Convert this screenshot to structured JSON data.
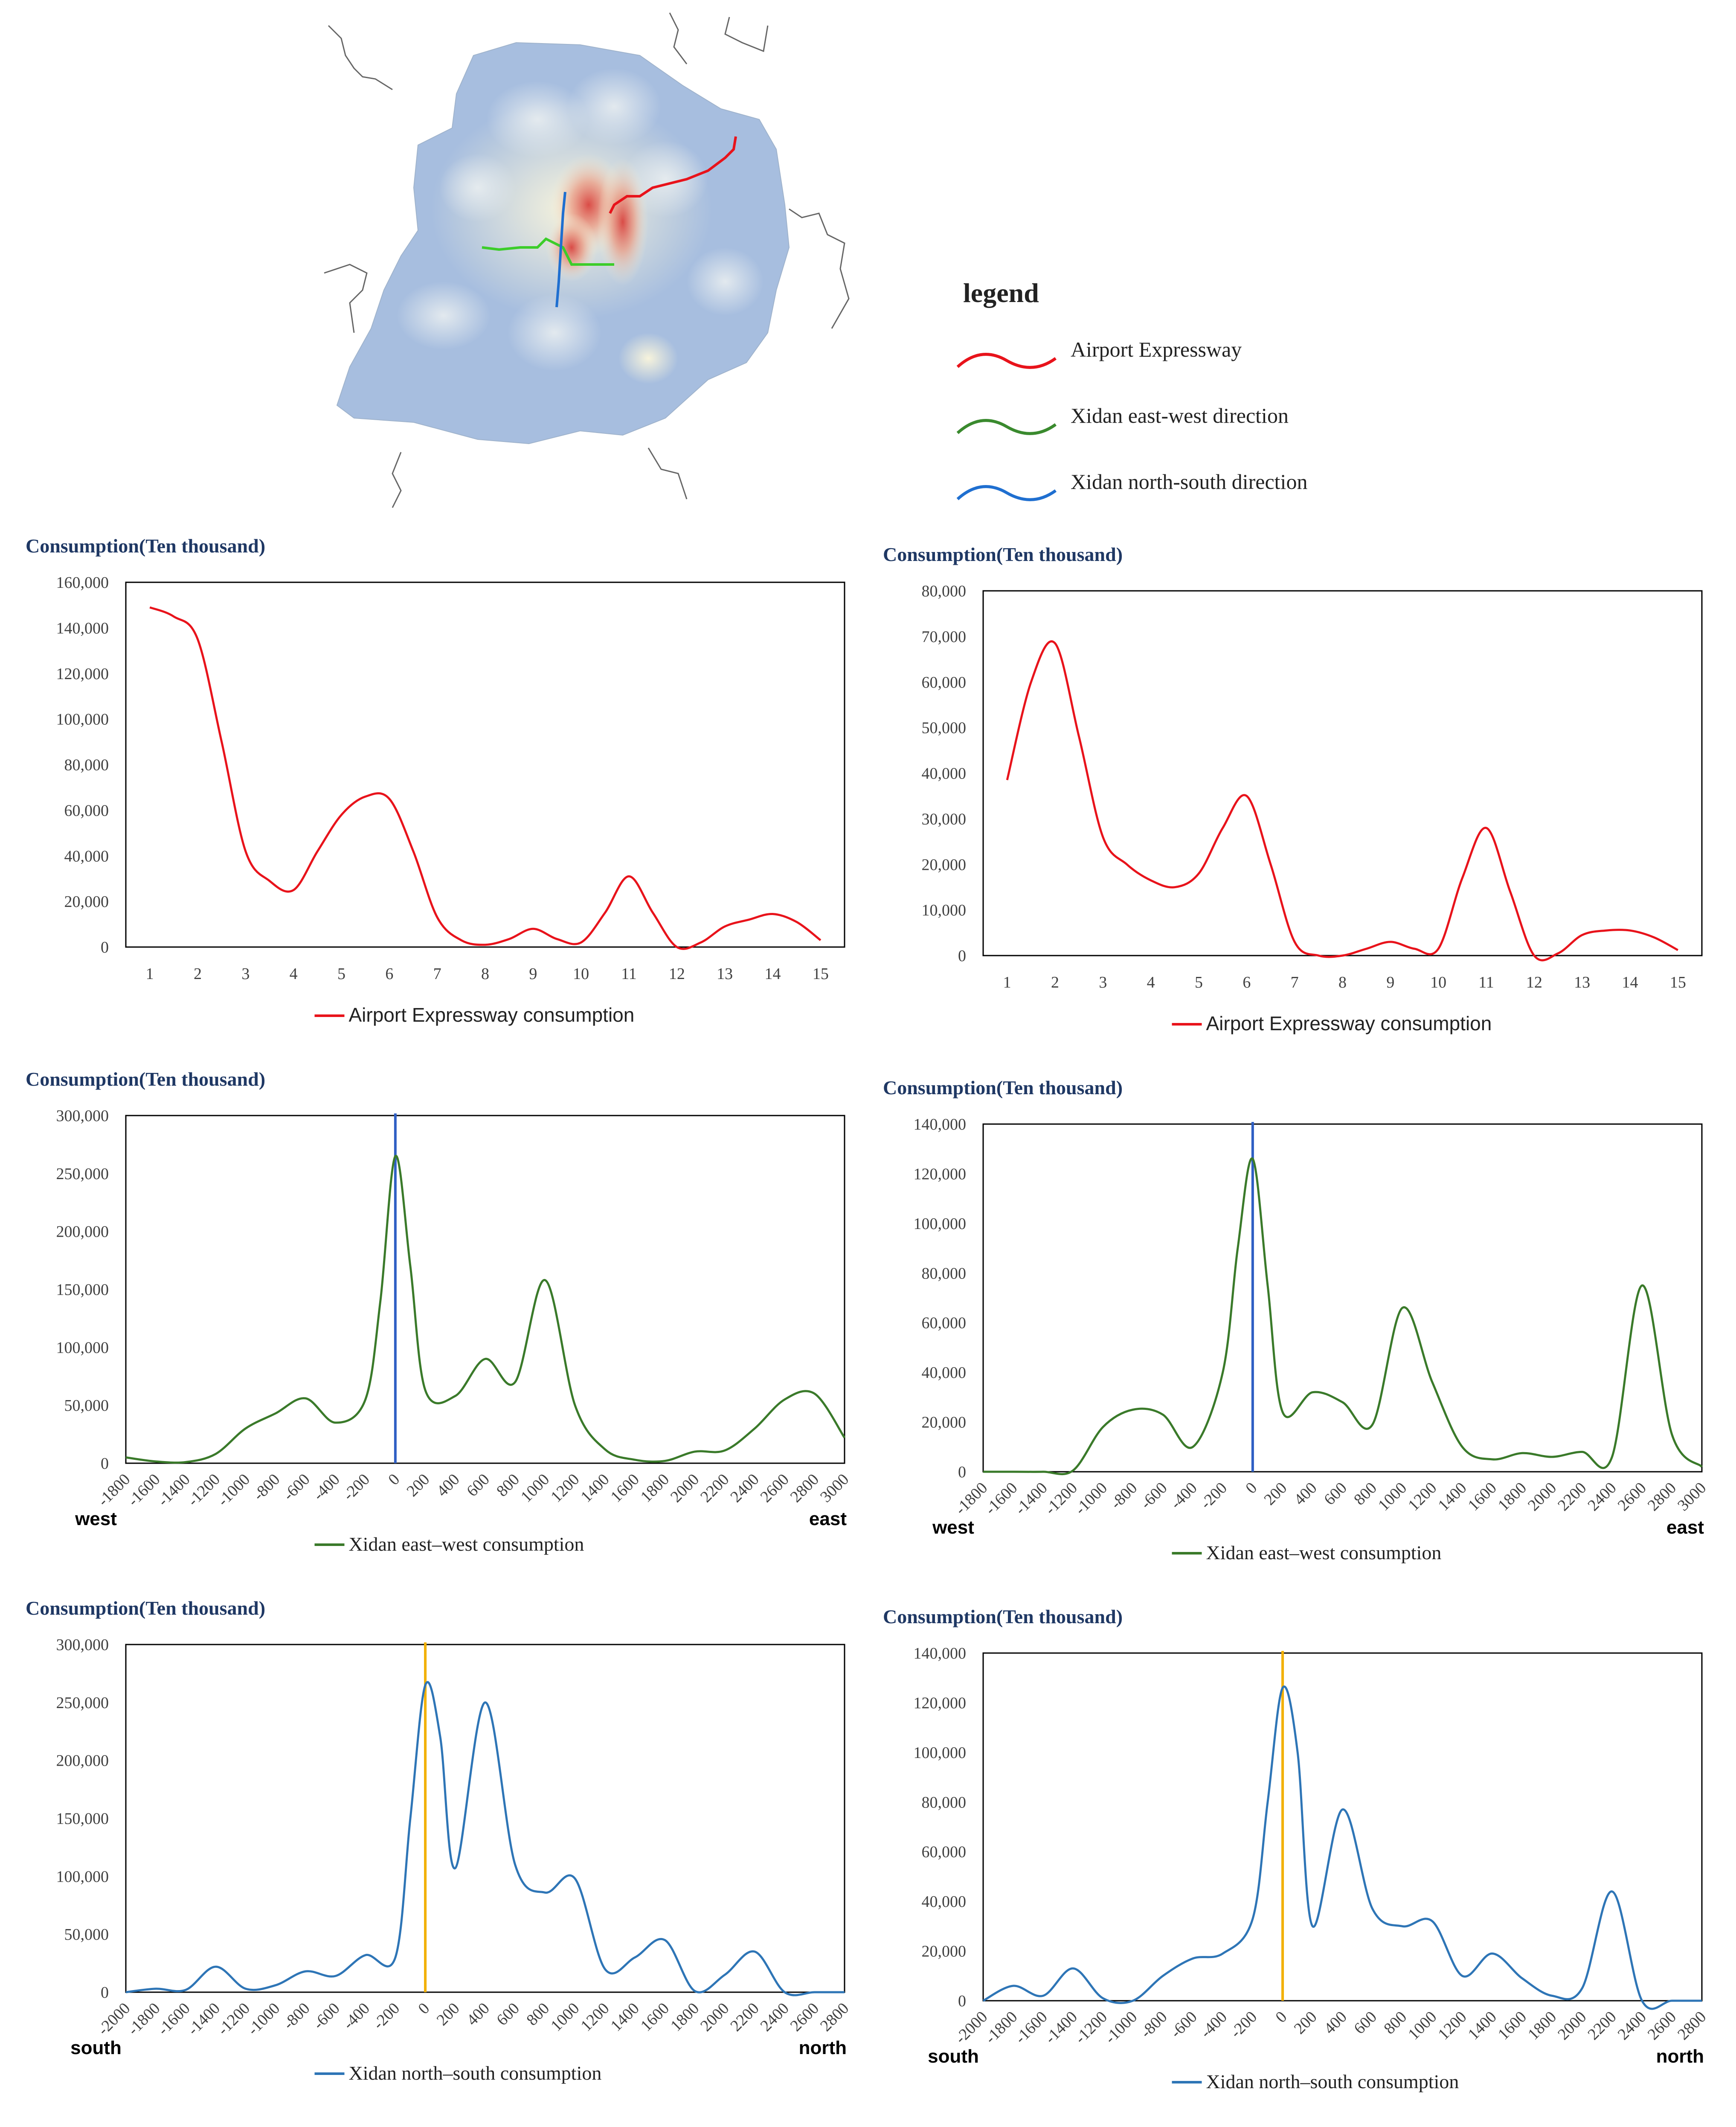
{
  "legend": {
    "title": "legend",
    "items": [
      {
        "label": "Airport Expressway",
        "color": "#e8131b"
      },
      {
        "label": "Xidan east-west direction",
        "color": "#3a8a2e"
      },
      {
        "label": "Xidan north-south direction",
        "color": "#1f6fd0"
      }
    ]
  },
  "chart_data": [
    {
      "id": "c1",
      "type": "line",
      "title": "Consumption(Ten thousand)",
      "x": [
        1,
        1.5,
        2,
        2.5,
        3,
        3.5,
        4,
        4.5,
        5,
        5.5,
        6,
        6.5,
        7,
        7.5,
        8,
        8.5,
        9,
        9.5,
        10,
        10.5,
        11,
        11.5,
        12,
        12.5,
        13,
        13.5,
        14,
        14.5,
        15
      ],
      "series": [
        {
          "name": "Airport Expressway consumption",
          "color": "#e8131b",
          "values": [
            149000,
            145000,
            135000,
            90000,
            42000,
            29000,
            25000,
            42000,
            58000,
            66000,
            65000,
            42000,
            13000,
            3000,
            1000,
            3500,
            8000,
            3500,
            2000,
            15000,
            31000,
            15000,
            0,
            2000,
            9000,
            12000,
            14500,
            11000,
            3000
          ]
        }
      ],
      "xticks": [
        "1",
        "2",
        "3",
        "4",
        "5",
        "6",
        "7",
        "8",
        "9",
        "10",
        "11",
        "12",
        "13",
        "14",
        "15"
      ],
      "yticks": [
        "0",
        "20,000",
        "40,000",
        "60,000",
        "80,000",
        "100,000",
        "120,000",
        "140,000",
        "160,000"
      ],
      "ylim": [
        0,
        160000
      ],
      "xlim": [
        0.5,
        15.5
      ]
    },
    {
      "id": "c2",
      "type": "line",
      "title": "Consumption(Ten thousand)",
      "x": [
        1,
        1.5,
        2,
        2.5,
        3,
        3.5,
        4,
        4.5,
        5,
        5.5,
        6,
        6.5,
        7,
        7.5,
        8,
        8.5,
        9,
        9.5,
        10,
        10.5,
        11,
        11.5,
        12,
        12.5,
        13,
        13.5,
        14,
        14.5,
        15
      ],
      "series": [
        {
          "name": "Airport Expressway consumption",
          "color": "#e8131b",
          "values": [
            38500,
            60000,
            68500,
            48000,
            26000,
            20000,
            16500,
            15000,
            18000,
            28000,
            35000,
            20000,
            3000,
            0,
            0,
            1500,
            3000,
            1500,
            1500,
            17000,
            28000,
            14000,
            0,
            500,
            4500,
            5500,
            5500,
            4000,
            1200
          ]
        }
      ],
      "xticks": [
        "1",
        "2",
        "3",
        "4",
        "5",
        "6",
        "7",
        "8",
        "9",
        "10",
        "11",
        "12",
        "13",
        "14",
        "15"
      ],
      "yticks": [
        "0",
        "10,000",
        "20,000",
        "30,000",
        "40,000",
        "50,000",
        "60,000",
        "70,000",
        "80,000"
      ],
      "ylim": [
        0,
        80000
      ],
      "xlim": [
        0.5,
        15.5
      ]
    },
    {
      "id": "c3",
      "type": "line",
      "title": "Consumption(Ten thousand)",
      "x": [
        -1800,
        -1600,
        -1400,
        -1200,
        -1000,
        -800,
        -600,
        -400,
        -200,
        -100,
        0,
        100,
        200,
        400,
        600,
        800,
        1000,
        1200,
        1400,
        1600,
        1800,
        2000,
        2200,
        2400,
        2600,
        2800,
        3000
      ],
      "series": [
        {
          "name": "Xidan east–west consumption",
          "color": "#3a7a2a",
          "values": [
            5000,
            1500,
            1000,
            8000,
            30000,
            43000,
            56000,
            35000,
            55000,
            140000,
            265000,
            170000,
            63000,
            58000,
            90000,
            70000,
            158000,
            50000,
            12000,
            3000,
            2000,
            10000,
            11000,
            30000,
            55000,
            60000,
            22000
          ]
        }
      ],
      "xticks": [
        "-1800",
        "-1600",
        "-1400",
        "-1200",
        "-1000",
        "-800",
        "-600",
        "-400",
        "-200",
        "0",
        "200",
        "400",
        "600",
        "800",
        "1000",
        "1200",
        "1400",
        "1600",
        "1800",
        "2000",
        "2200",
        "2400",
        "2600",
        "2800",
        "3000"
      ],
      "yticks": [
        "0",
        "50,000",
        "100,000",
        "150,000",
        "200,000",
        "250,000",
        "300,000"
      ],
      "ylim": [
        0,
        300000
      ],
      "xlim": [
        -1800,
        3000
      ],
      "marker_x": 0,
      "marker_color": "#2f5fc4",
      "left_end": "west",
      "right_end": "east"
    },
    {
      "id": "c4",
      "type": "line",
      "title": "Consumption(Ten thousand)",
      "x": [
        -1800,
        -1600,
        -1400,
        -1200,
        -1000,
        -800,
        -600,
        -400,
        -200,
        -100,
        0,
        100,
        200,
        400,
        600,
        800,
        1000,
        1200,
        1400,
        1600,
        1800,
        2000,
        2200,
        2400,
        2600,
        2800,
        3000
      ],
      "series": [
        {
          "name": "Xidan east–west consumption",
          "color": "#3a7a2a",
          "values": [
            0,
            0,
            0,
            500,
            18000,
            25000,
            23000,
            10000,
            40000,
            90000,
            126000,
            75000,
            24000,
            32000,
            28000,
            19000,
            66000,
            36000,
            10000,
            5000,
            7500,
            6000,
            8000,
            6000,
            75000,
            15000,
            2000
          ]
        }
      ],
      "xticks": [
        "-1800",
        "-1600",
        "-1400",
        "-1200",
        "-1000",
        "-800",
        "-600",
        "-400",
        "-200",
        "0",
        "200",
        "400",
        "600",
        "800",
        "1000",
        "1200",
        "1400",
        "1600",
        "1800",
        "2000",
        "2200",
        "2400",
        "2600",
        "2800",
        "3000"
      ],
      "yticks": [
        "0",
        "20,000",
        "40,000",
        "60,000",
        "80,000",
        "100,000",
        "120,000",
        "140,000"
      ],
      "ylim": [
        0,
        140000
      ],
      "xlim": [
        -1800,
        3000
      ],
      "marker_x": 0,
      "marker_color": "#2f5fc4",
      "left_end": "west",
      "right_end": "east"
    },
    {
      "id": "c5",
      "type": "line",
      "title": "Consumption(Ten thousand)",
      "x": [
        -2000,
        -1800,
        -1600,
        -1400,
        -1200,
        -1000,
        -800,
        -600,
        -400,
        -200,
        -100,
        0,
        100,
        200,
        400,
        600,
        800,
        1000,
        1200,
        1400,
        1600,
        1800,
        2000,
        2200,
        2400,
        2600,
        2800
      ],
      "series": [
        {
          "name": "Xidan north–south consumption",
          "color": "#2e75b6",
          "values": [
            0,
            3000,
            2000,
            22000,
            3000,
            6000,
            18000,
            14000,
            32000,
            30000,
            150000,
            265000,
            220000,
            107000,
            250000,
            110000,
            86000,
            98000,
            20000,
            30000,
            45000,
            1000,
            15000,
            35000,
            0,
            0,
            0
          ]
        }
      ],
      "xticks": [
        "-2000",
        "-1800",
        "-1600",
        "-1400",
        "-1200",
        "-1000",
        "-800",
        "-600",
        "-400",
        "-200",
        "0",
        "200",
        "400",
        "600",
        "800",
        "1000",
        "1200",
        "1400",
        "1600",
        "1800",
        "2000",
        "2200",
        "2400",
        "2600",
        "2800"
      ],
      "yticks": [
        "0",
        "50,000",
        "100,000",
        "150,000",
        "200,000",
        "250,000",
        "300,000"
      ],
      "ylim": [
        0,
        300000
      ],
      "xlim": [
        -2000,
        2800
      ],
      "marker_x": 0,
      "marker_color": "#f2b000",
      "left_end": "south",
      "right_end": "north"
    },
    {
      "id": "c6",
      "type": "line",
      "title": "Consumption(Ten thousand)",
      "x": [
        -2000,
        -1800,
        -1600,
        -1400,
        -1200,
        -1000,
        -800,
        -600,
        -400,
        -200,
        -100,
        0,
        100,
        200,
        400,
        600,
        800,
        1000,
        1200,
        1400,
        1600,
        1800,
        2000,
        2200,
        2400,
        2600,
        2800
      ],
      "series": [
        {
          "name": "Xidan north–south consumption",
          "color": "#2e75b6",
          "values": [
            0,
            6000,
            2000,
            13000,
            1000,
            0,
            10000,
            17000,
            19000,
            33000,
            80000,
            126000,
            100000,
            30000,
            77000,
            37000,
            30000,
            32000,
            10000,
            19000,
            9000,
            2000,
            5000,
            44000,
            0,
            0,
            0
          ]
        }
      ],
      "xticks": [
        "-2000",
        "-1800",
        "-1600",
        "-1400",
        "-1200",
        "-1000",
        "-800",
        "-600",
        "-400",
        "-200",
        "0",
        "200",
        "400",
        "600",
        "800",
        "1000",
        "1200",
        "1400",
        "1600",
        "1800",
        "2000",
        "2200",
        "2400",
        "2600",
        "2800"
      ],
      "yticks": [
        "0",
        "20,000",
        "40,000",
        "60,000",
        "80,000",
        "100,000",
        "120,000",
        "140,000"
      ],
      "ylim": [
        0,
        140000
      ],
      "xlim": [
        -2000,
        2800
      ],
      "marker_x": 0,
      "marker_color": "#f2b000",
      "left_end": "south",
      "right_end": "north"
    }
  ]
}
